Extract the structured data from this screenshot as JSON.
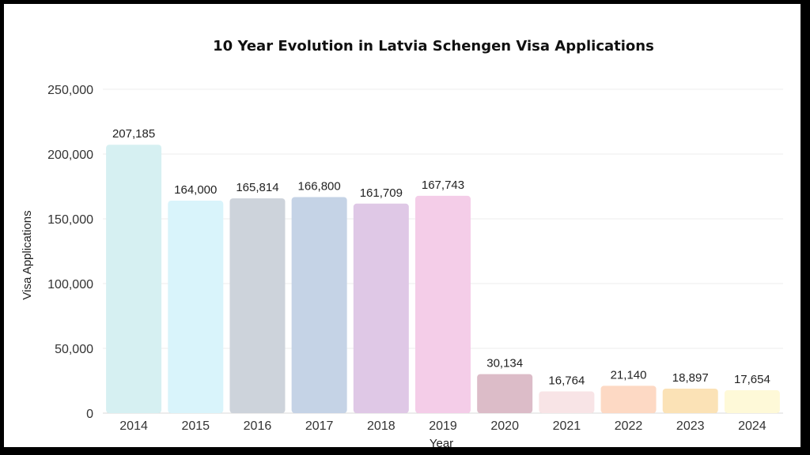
{
  "chart_data": {
    "type": "bar",
    "title": "10 Year Evolution in Latvia Schengen Visa Applications",
    "xlabel": "Year",
    "ylabel": "Visa Applications",
    "ylim": [
      0,
      250000
    ],
    "yticks": [
      0,
      50000,
      100000,
      150000,
      200000,
      250000
    ],
    "ytick_labels": [
      "0",
      "50,000",
      "100,000",
      "150,000",
      "200,000",
      "250,000"
    ],
    "grid": true,
    "categories": [
      "2014",
      "2015",
      "2016",
      "2017",
      "2018",
      "2019",
      "2020",
      "2021",
      "2022",
      "2023",
      "2024"
    ],
    "values": [
      207185,
      164000,
      165814,
      166800,
      161709,
      167743,
      30134,
      16764,
      21140,
      18897,
      17654
    ],
    "data_labels": [
      "207,185",
      "164,000",
      "165,814",
      "166,800",
      "161,709",
      "167,743",
      "30,134",
      "16,764",
      "21,140",
      "18,897",
      "17,654"
    ],
    "colors": [
      "#d6f0f2",
      "#d9f4fb",
      "#cdd3db",
      "#c5d3e6",
      "#dfc8e6",
      "#f4cde8",
      "#dcbcc8",
      "#f8e4e6",
      "#fdd9c4",
      "#fbe2b6",
      "#fef9d8"
    ]
  }
}
